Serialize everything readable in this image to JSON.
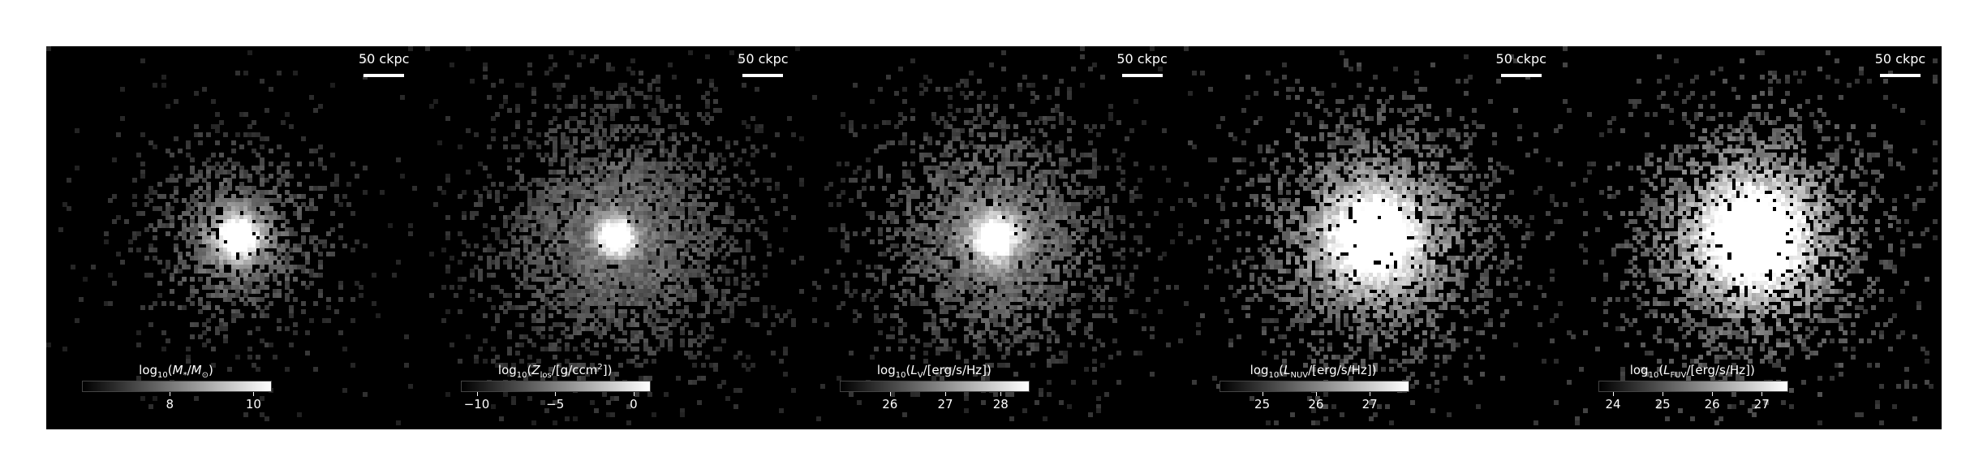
{
  "panels": [
    {
      "scalebar": "50 ckpc",
      "colorbar": {
        "label_pre": "log",
        "label_sub": "10",
        "label_a": "(",
        "label_i": "M",
        "label_isub": "*",
        "label_b": "/",
        "label_i2": "M",
        "label_i2sub": "⊙",
        "label_c": ")",
        "label_sup": "",
        "ticks": [
          {
            "value": 8,
            "text": "8"
          },
          {
            "value": 10,
            "text": "10"
          }
        ],
        "range": [
          5.9,
          10.4
        ]
      },
      "image": {
        "intensity": 0.55,
        "core": 1.0,
        "core_radius": 0.06,
        "noise_density": 0.45,
        "spread": 0.45
      }
    },
    {
      "scalebar": "50 ckpc",
      "colorbar": {
        "label_pre": "log",
        "label_sub": "10",
        "label_a": "(",
        "label_i": "Z",
        "label_isub": "los",
        "label_b": "/[g/ccm",
        "label_i2": "",
        "label_i2sub": "",
        "label_c": "])",
        "label_sup": "2",
        "ticks": [
          {
            "value": -10,
            "text": "−10"
          },
          {
            "value": -5,
            "text": "−5"
          },
          {
            "value": 0,
            "text": "0"
          }
        ],
        "range": [
          -11,
          1
        ]
      },
      "image": {
        "intensity": 0.55,
        "core": 1.0,
        "core_radius": 0.05,
        "noise_density": 0.65,
        "spread": 0.7
      }
    },
    {
      "scalebar": "50 ckpc",
      "colorbar": {
        "label_pre": "log",
        "label_sub": "10",
        "label_a": "(",
        "label_i": "L",
        "label_isub": "V",
        "label_b": "/[erg/s/Hz])",
        "label_i2": "",
        "label_i2sub": "",
        "label_c": "",
        "label_sup": "",
        "ticks": [
          {
            "value": 26,
            "text": "26"
          },
          {
            "value": 27,
            "text": "27"
          },
          {
            "value": 28,
            "text": "28"
          }
        ],
        "range": [
          25.1,
          28.5
        ]
      },
      "image": {
        "intensity": 0.6,
        "core": 0.95,
        "core_radius": 0.06,
        "noise_density": 0.6,
        "spread": 0.65
      }
    },
    {
      "scalebar": "50 ckpc",
      "colorbar": {
        "label_pre": "log",
        "label_sub": "10",
        "label_a": "(",
        "label_i": "L",
        "label_isub": "NUV",
        "label_b": "/[erg/s/Hz])",
        "label_i2": "",
        "label_i2sub": "",
        "label_c": "",
        "label_sup": "",
        "ticks": [
          {
            "value": 25,
            "text": "25"
          },
          {
            "value": 26,
            "text": "26"
          },
          {
            "value": 27,
            "text": "27"
          }
        ],
        "range": [
          24.2,
          27.7
        ]
      },
      "image": {
        "intensity": 0.75,
        "core": 0.9,
        "core_radius": 0.12,
        "noise_density": 0.65,
        "spread": 0.65
      }
    },
    {
      "scalebar": "50 ckpc",
      "colorbar": {
        "label_pre": "log",
        "label_sub": "10",
        "label_a": "(",
        "label_i": "L",
        "label_isub": "FUV",
        "label_b": "/[erg/s/Hz])",
        "label_i2": "",
        "label_i2sub": "",
        "label_c": "",
        "label_sup": "",
        "ticks": [
          {
            "value": 24,
            "text": "24"
          },
          {
            "value": 25,
            "text": "25"
          },
          {
            "value": 26,
            "text": "26"
          },
          {
            "value": 27,
            "text": "27"
          }
        ],
        "range": [
          23.7,
          27.5
        ]
      },
      "image": {
        "intensity": 0.8,
        "core": 0.9,
        "core_radius": 0.14,
        "noise_density": 0.65,
        "spread": 0.65
      }
    }
  ]
}
